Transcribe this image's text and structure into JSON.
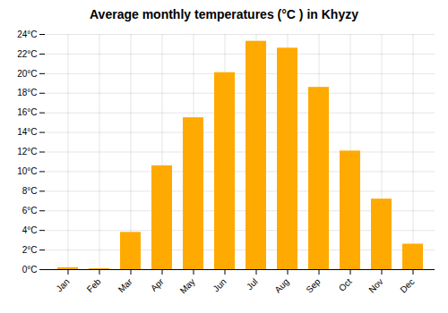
{
  "chart_data": {
    "type": "bar",
    "title": "Average monthly temperatures (°C ) in Khyzy",
    "categories": [
      "Jan",
      "Feb",
      "Mar",
      "Apr",
      "May",
      "Jun",
      "Jul",
      "Aug",
      "Sep",
      "Oct",
      "Nov",
      "Dec"
    ],
    "values": [
      0.2,
      0.1,
      3.8,
      10.6,
      15.5,
      20.1,
      23.3,
      22.6,
      18.6,
      12.1,
      7.2,
      2.6
    ],
    "color": "#FFAA00",
    "ylim": [
      0,
      24
    ],
    "yticks": [
      {
        "value": 0,
        "label": "0°C"
      },
      {
        "value": 2,
        "label": "2°C"
      },
      {
        "value": 4,
        "label": "4°C"
      },
      {
        "value": 6,
        "label": "6°C"
      },
      {
        "value": 8,
        "label": "8°C"
      },
      {
        "value": 10,
        "label": "10°C"
      },
      {
        "value": 12,
        "label": "12°C"
      },
      {
        "value": 14,
        "label": "14°C"
      },
      {
        "value": 16,
        "label": "16°C"
      },
      {
        "value": 18,
        "label": "18°C"
      },
      {
        "value": 20,
        "label": "20°C"
      },
      {
        "value": 22,
        "label": "22°C"
      },
      {
        "value": 24,
        "label": "24°C"
      }
    ],
    "grid": true
  }
}
